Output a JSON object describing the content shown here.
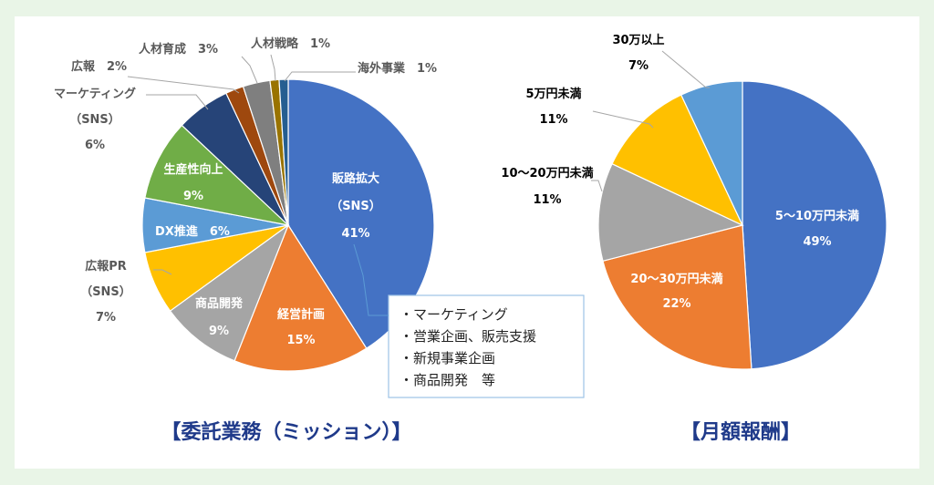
{
  "chart_data": [
    {
      "type": "pie",
      "title": "【委託業務（ミッション）】",
      "slices": [
        {
          "label_lines": [
            "販路拡大",
            "（SNS）",
            "41%"
          ],
          "value": 41,
          "color": "#4472c4"
        },
        {
          "label_lines": [
            "経営計画",
            "15%"
          ],
          "value": 15,
          "color": "#ed7d31"
        },
        {
          "label_lines": [
            "商品開発",
            "9%"
          ],
          "value": 9,
          "color": "#a5a5a5"
        },
        {
          "label_lines": [
            "広報PR",
            "（SNS）",
            "7%"
          ],
          "value": 7,
          "color": "#ffc000"
        },
        {
          "label_lines": [
            "DX推進　6%"
          ],
          "value": 6,
          "color": "#5b9bd5"
        },
        {
          "label_lines": [
            "生産性向上",
            "9%"
          ],
          "value": 9,
          "color": "#70ad47"
        },
        {
          "label_lines": [
            "マーケティング",
            "（SNS）",
            "6%"
          ],
          "value": 6,
          "color": "#264478"
        },
        {
          "label_lines": [
            "広報　2%"
          ],
          "value": 2,
          "color": "#9e480e"
        },
        {
          "label_lines": [
            "人材育成　3%"
          ],
          "value": 3,
          "color": "#7f7f7f"
        },
        {
          "label_lines": [
            "人材戦略　1%"
          ],
          "value": 1,
          "color": "#997300"
        },
        {
          "label_lines": [
            "海外事業　1%"
          ],
          "value": 1,
          "color": "#255e91"
        }
      ],
      "callout": [
        "・マーケティング",
        "・営業企画、販売支援",
        "・新規事業企画",
        "・商品開発　等"
      ]
    },
    {
      "type": "pie",
      "title": "【月額報酬】",
      "slices": [
        {
          "label_lines": [
            "5～10万円未満",
            "49%"
          ],
          "value": 49,
          "color": "#4472c4"
        },
        {
          "label_lines": [
            "20～30万円未満",
            "22%"
          ],
          "value": 22,
          "color": "#ed7d31"
        },
        {
          "label_lines": [
            "10～20万円未満",
            "11%"
          ],
          "value": 11,
          "color": "#a5a5a5"
        },
        {
          "label_lines": [
            "5万円未満",
            "11%"
          ],
          "value": 11,
          "color": "#ffc000"
        },
        {
          "label_lines": [
            "30万以上",
            "7%"
          ],
          "value": 7,
          "color": "#5b9bd5"
        }
      ]
    }
  ]
}
